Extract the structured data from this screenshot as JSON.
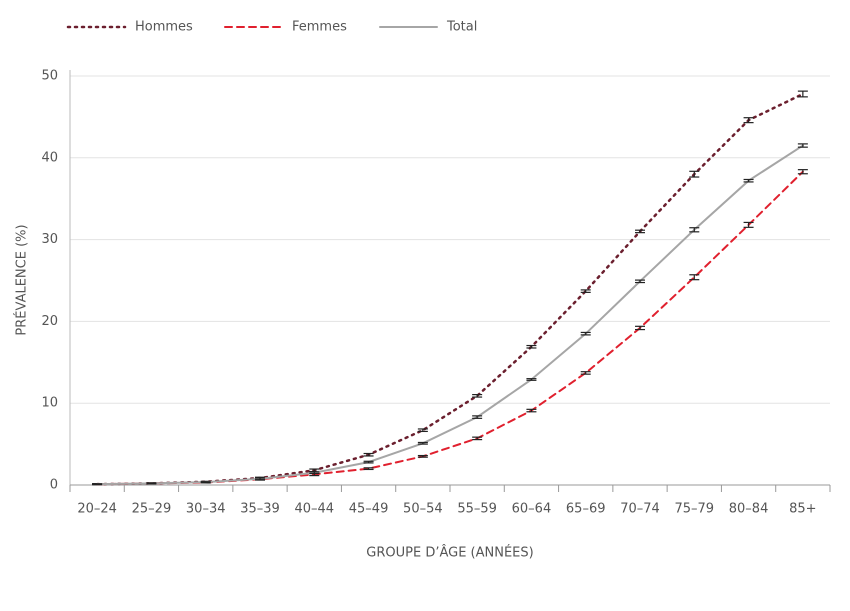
{
  "chart_data": {
    "type": "line",
    "x_label": "GROUPE D’ÂGE (ANNÉES)",
    "y_label": "PRÉVALENCE (%)",
    "categories": [
      "20–24",
      "25–29",
      "30–34",
      "35–39",
      "40–44",
      "45–49",
      "50–54",
      "55–59",
      "60–64",
      "65–69",
      "70–74",
      "75–79",
      "80–84",
      "85+"
    ],
    "series": [
      {
        "name": "Hommes",
        "color": "#6b1f2e",
        "dash": "dotted",
        "values": [
          0.1,
          0.2,
          0.4,
          0.85,
          1.8,
          3.7,
          6.7,
          10.9,
          16.9,
          23.7,
          31.0,
          38.0,
          44.6,
          47.8
        ],
        "errors": [
          0.05,
          0.05,
          0.05,
          0.1,
          0.15,
          0.15,
          0.15,
          0.15,
          0.15,
          0.15,
          0.15,
          0.35,
          0.3,
          0.35
        ]
      },
      {
        "name": "Femmes",
        "color": "#e0202e",
        "dash": "dashed",
        "values": [
          0.1,
          0.2,
          0.3,
          0.7,
          1.3,
          2.0,
          3.5,
          5.7,
          9.1,
          13.7,
          19.2,
          25.4,
          31.8,
          38.3
        ],
        "errors": [
          0.05,
          0.05,
          0.05,
          0.1,
          0.15,
          0.1,
          0.1,
          0.15,
          0.15,
          0.15,
          0.2,
          0.3,
          0.3,
          0.25
        ]
      },
      {
        "name": "Total",
        "color": "#a6a6a6",
        "dash": "solid",
        "values": [
          0.1,
          0.2,
          0.35,
          0.75,
          1.5,
          2.8,
          5.1,
          8.3,
          12.9,
          18.5,
          24.9,
          31.2,
          37.2,
          41.5
        ],
        "errors": [
          0.05,
          0.05,
          0.05,
          0.1,
          0.1,
          0.1,
          0.1,
          0.15,
          0.1,
          0.15,
          0.15,
          0.25,
          0.15,
          0.2
        ]
      }
    ],
    "error_bar_color": "#222222",
    "ylim": [
      0,
      50
    ],
    "yticks": [
      0,
      10,
      20,
      30,
      40,
      50
    ],
    "grid": true,
    "legend": "top-left"
  }
}
